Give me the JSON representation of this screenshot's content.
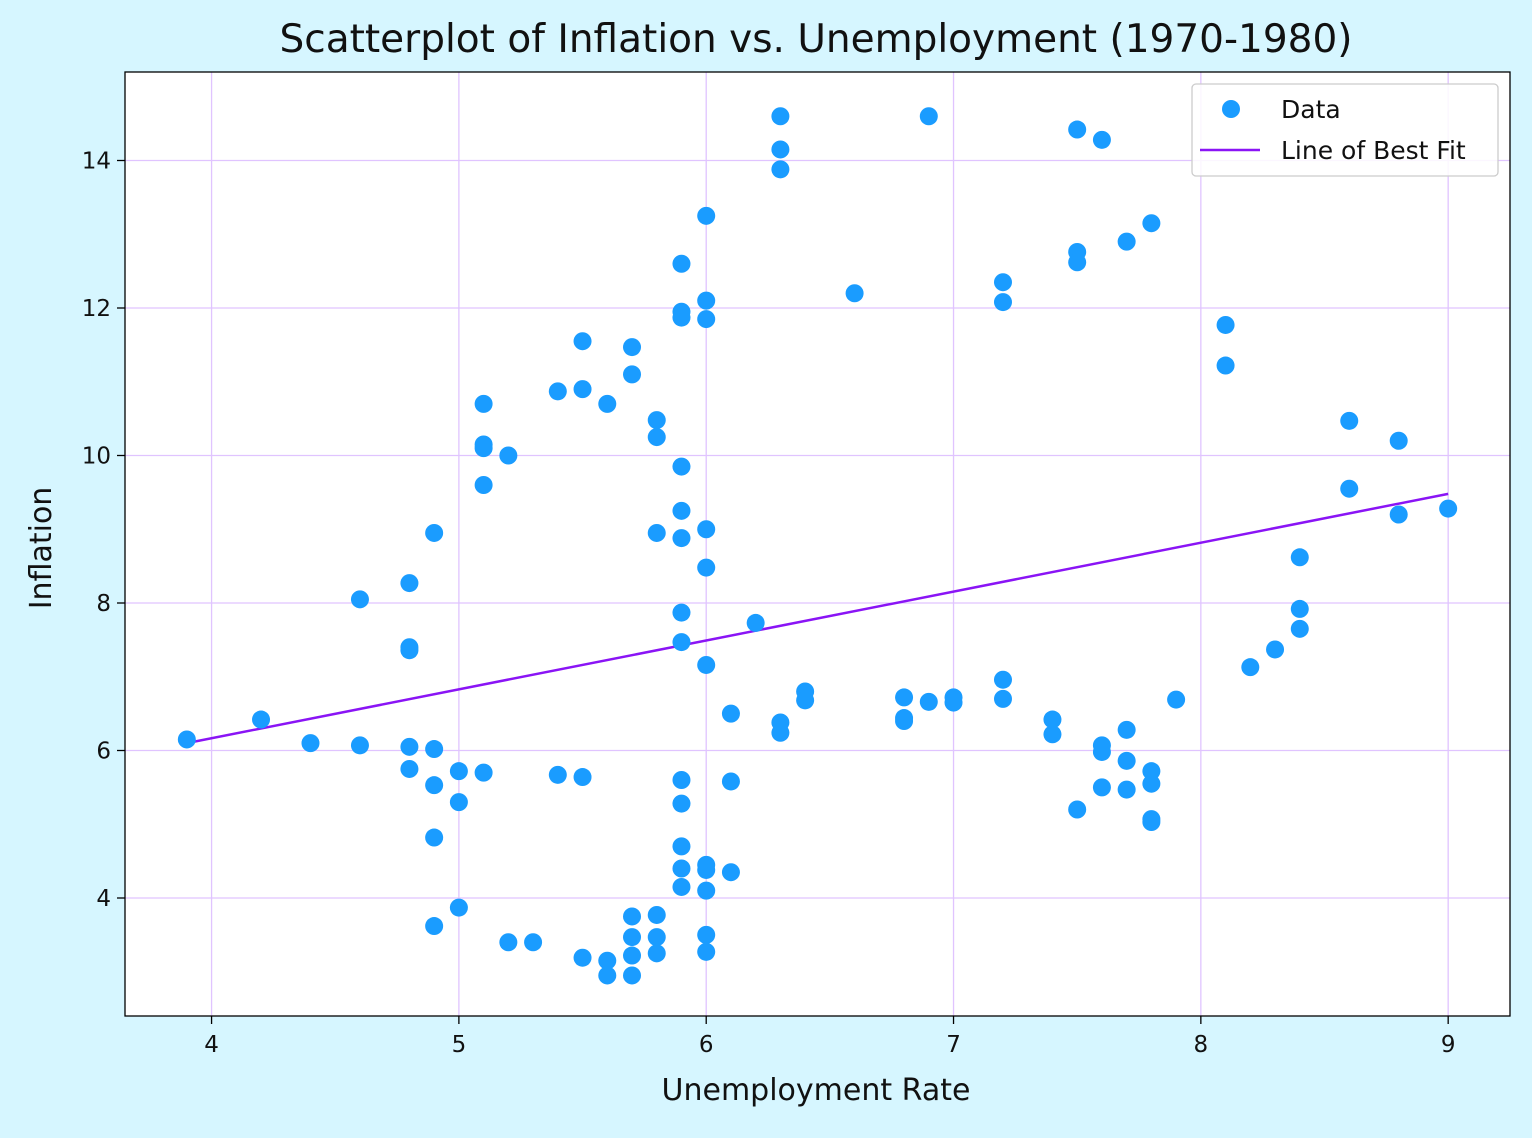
{
  "chart_data": {
    "type": "scatter",
    "title": "Scatterplot of Inflation vs. Unemployment (1970-1980)",
    "xlabel": "Unemployment Rate",
    "ylabel": "Inflation",
    "xlim": [
      3.65,
      9.25
    ],
    "ylim": [
      2.4,
      15.2
    ],
    "xticks": [
      4,
      5,
      6,
      7,
      8,
      9
    ],
    "yticks": [
      4,
      6,
      8,
      10,
      12,
      14
    ],
    "grid": true,
    "legend_position": "top-right",
    "legend": [
      {
        "label": "Data",
        "kind": "marker"
      },
      {
        "label": "Line of Best Fit",
        "kind": "line"
      }
    ],
    "colors": {
      "points": "#1a9cff",
      "fit_line": "#8a14f5",
      "grid": "#e0c4ff",
      "figure_background": "#d6f6ff",
      "axes_background": "#ffffff"
    },
    "series": [
      {
        "name": "Data",
        "kind": "scatter",
        "points": [
          [
            3.9,
            6.15
          ],
          [
            4.2,
            6.42
          ],
          [
            4.4,
            6.1
          ],
          [
            4.6,
            6.07
          ],
          [
            4.6,
            8.05
          ],
          [
            4.8,
            8.27
          ],
          [
            4.8,
            7.4
          ],
          [
            4.8,
            7.36
          ],
          [
            4.8,
            6.05
          ],
          [
            4.8,
            5.75
          ],
          [
            4.9,
            8.95
          ],
          [
            4.9,
            6.02
          ],
          [
            4.9,
            5.53
          ],
          [
            4.9,
            4.82
          ],
          [
            4.9,
            3.62
          ],
          [
            5.0,
            5.72
          ],
          [
            5.0,
            5.3
          ],
          [
            5.0,
            3.87
          ],
          [
            5.1,
            10.7
          ],
          [
            5.1,
            10.15
          ],
          [
            5.1,
            10.1
          ],
          [
            5.1,
            9.6
          ],
          [
            5.1,
            5.7
          ],
          [
            5.2,
            10.0
          ],
          [
            5.2,
            3.4
          ],
          [
            5.3,
            3.4
          ],
          [
            5.4,
            10.87
          ],
          [
            5.4,
            5.67
          ],
          [
            5.5,
            11.55
          ],
          [
            5.5,
            10.9
          ],
          [
            5.5,
            5.64
          ],
          [
            5.5,
            3.19
          ],
          [
            5.6,
            10.7
          ],
          [
            5.6,
            3.15
          ],
          [
            5.6,
            2.95
          ],
          [
            5.7,
            11.47
          ],
          [
            5.7,
            11.1
          ],
          [
            5.7,
            3.75
          ],
          [
            5.7,
            3.47
          ],
          [
            5.7,
            3.22
          ],
          [
            5.7,
            2.95
          ],
          [
            5.8,
            10.48
          ],
          [
            5.8,
            10.25
          ],
          [
            5.8,
            8.95
          ],
          [
            5.8,
            3.77
          ],
          [
            5.8,
            3.47
          ],
          [
            5.8,
            3.25
          ],
          [
            5.9,
            12.6
          ],
          [
            5.9,
            11.95
          ],
          [
            5.9,
            11.87
          ],
          [
            5.9,
            9.85
          ],
          [
            5.9,
            9.25
          ],
          [
            5.9,
            8.88
          ],
          [
            5.9,
            7.87
          ],
          [
            5.9,
            7.47
          ],
          [
            5.9,
            5.6
          ],
          [
            5.9,
            5.28
          ],
          [
            5.9,
            4.7
          ],
          [
            5.9,
            4.4
          ],
          [
            5.9,
            4.15
          ],
          [
            6.0,
            13.25
          ],
          [
            6.0,
            12.1
          ],
          [
            6.0,
            11.85
          ],
          [
            6.0,
            9.0
          ],
          [
            6.0,
            8.48
          ],
          [
            6.0,
            7.16
          ],
          [
            6.0,
            4.45
          ],
          [
            6.0,
            4.38
          ],
          [
            6.0,
            4.1
          ],
          [
            6.0,
            3.5
          ],
          [
            6.0,
            3.27
          ],
          [
            6.1,
            6.5
          ],
          [
            6.1,
            5.58
          ],
          [
            6.1,
            4.35
          ],
          [
            6.2,
            7.73
          ],
          [
            6.3,
            14.6
          ],
          [
            6.3,
            14.15
          ],
          [
            6.3,
            13.88
          ],
          [
            6.3,
            6.38
          ],
          [
            6.3,
            6.24
          ],
          [
            6.4,
            6.8
          ],
          [
            6.4,
            6.68
          ],
          [
            6.6,
            12.2
          ],
          [
            6.8,
            6.72
          ],
          [
            6.8,
            6.44
          ],
          [
            6.8,
            6.4
          ],
          [
            6.9,
            14.6
          ],
          [
            6.9,
            6.66
          ],
          [
            7.0,
            6.72
          ],
          [
            7.0,
            6.65
          ],
          [
            7.2,
            12.35
          ],
          [
            7.2,
            12.08
          ],
          [
            7.2,
            6.96
          ],
          [
            7.2,
            6.7
          ],
          [
            7.4,
            6.42
          ],
          [
            7.4,
            6.22
          ],
          [
            7.5,
            14.42
          ],
          [
            7.5,
            12.76
          ],
          [
            7.5,
            12.62
          ],
          [
            7.5,
            5.2
          ],
          [
            7.6,
            14.28
          ],
          [
            7.6,
            6.07
          ],
          [
            7.6,
            5.98
          ],
          [
            7.6,
            5.5
          ],
          [
            7.7,
            12.9
          ],
          [
            7.7,
            6.28
          ],
          [
            7.7,
            5.86
          ],
          [
            7.7,
            5.47
          ],
          [
            7.8,
            13.15
          ],
          [
            7.8,
            5.72
          ],
          [
            7.8,
            5.55
          ],
          [
            7.8,
            5.07
          ],
          [
            7.8,
            5.03
          ],
          [
            7.9,
            6.69
          ],
          [
            8.1,
            11.77
          ],
          [
            8.1,
            11.22
          ],
          [
            8.2,
            7.13
          ],
          [
            8.3,
            7.37
          ],
          [
            8.4,
            8.62
          ],
          [
            8.4,
            7.92
          ],
          [
            8.4,
            7.65
          ],
          [
            8.6,
            10.47
          ],
          [
            8.6,
            9.55
          ],
          [
            8.8,
            10.2
          ],
          [
            8.8,
            9.2
          ],
          [
            9.0,
            9.28
          ]
        ]
      },
      {
        "name": "Line of Best Fit",
        "kind": "line",
        "points": [
          [
            3.9,
            6.1
          ],
          [
            9.0,
            9.48
          ]
        ]
      }
    ]
  }
}
